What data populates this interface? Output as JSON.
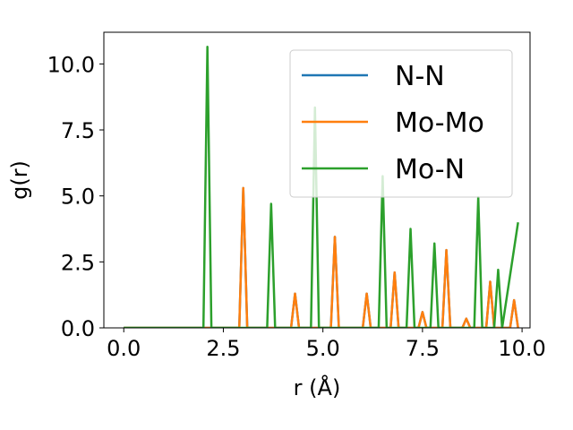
{
  "chart_data": {
    "type": "line",
    "xlabel": "r (Å)",
    "ylabel": "g(r)",
    "xlim": [
      -0.5,
      10.2
    ],
    "ylim": [
      0,
      11.2
    ],
    "xticks": [
      0.0,
      2.5,
      5.0,
      7.5,
      10.0
    ],
    "xtick_labels": [
      "0.0",
      "2.5",
      "5.0",
      "7.5",
      "10.0"
    ],
    "yticks": [
      0.0,
      2.5,
      5.0,
      7.5,
      10.0
    ],
    "ytick_labels": [
      "0.0",
      "2.5",
      "5.0",
      "7.5",
      "10.0"
    ],
    "grid": false,
    "legend_position": "upper-right",
    "series": [
      {
        "name": "N-N",
        "color": "#1f77b4",
        "x": [
          0.0,
          2.9,
          3.0,
          3.1,
          4.2,
          4.3,
          4.4,
          5.2,
          5.3,
          5.4,
          6.0,
          6.1,
          6.2,
          6.7,
          6.8,
          6.9,
          7.4,
          7.5,
          7.6,
          8.0,
          8.1,
          8.2,
          8.5,
          8.6,
          8.7,
          9.1,
          9.2,
          9.3,
          9.7,
          9.8,
          9.9
        ],
        "y": [
          0.0,
          0.0,
          5.3,
          0.0,
          0.0,
          1.3,
          0.0,
          0.0,
          3.45,
          0.0,
          0.0,
          1.3,
          0.0,
          0.0,
          2.1,
          0.0,
          0.0,
          0.6,
          0.0,
          0.0,
          2.95,
          0.0,
          0.0,
          0.35,
          0.0,
          0.0,
          1.75,
          0.0,
          0.0,
          1.05,
          0.0
        ]
      },
      {
        "name": "Mo-Mo",
        "color": "#ff7f0e",
        "x": [
          0.0,
          2.9,
          3.0,
          3.1,
          4.2,
          4.3,
          4.4,
          5.2,
          5.3,
          5.4,
          6.0,
          6.1,
          6.2,
          6.7,
          6.8,
          6.9,
          7.4,
          7.5,
          7.6,
          8.0,
          8.1,
          8.2,
          8.5,
          8.6,
          8.7,
          9.1,
          9.2,
          9.3,
          9.7,
          9.8,
          9.9
        ],
        "y": [
          0.0,
          0.0,
          5.3,
          0.0,
          0.0,
          1.3,
          0.0,
          0.0,
          3.45,
          0.0,
          0.0,
          1.3,
          0.0,
          0.0,
          2.1,
          0.0,
          0.0,
          0.6,
          0.0,
          0.0,
          2.95,
          0.0,
          0.0,
          0.35,
          0.0,
          0.0,
          1.75,
          0.0,
          0.0,
          1.05,
          0.0
        ]
      },
      {
        "name": "Mo-N",
        "color": "#2ca02c",
        "x": [
          0.0,
          2.0,
          2.1,
          2.2,
          3.6,
          3.7,
          3.8,
          4.7,
          4.8,
          4.9,
          6.4,
          6.5,
          6.6,
          7.1,
          7.2,
          7.3,
          7.7,
          7.8,
          7.9,
          8.8,
          8.9,
          9.0,
          9.3,
          9.4,
          9.5,
          9.9
        ],
        "y": [
          0.0,
          0.0,
          10.65,
          0.0,
          0.0,
          4.7,
          0.0,
          0.0,
          8.35,
          0.0,
          0.0,
          5.75,
          0.0,
          0.0,
          3.75,
          0.0,
          0.0,
          3.2,
          0.0,
          0.0,
          4.95,
          0.0,
          0.0,
          2.2,
          0.0,
          4.0
        ]
      }
    ]
  }
}
